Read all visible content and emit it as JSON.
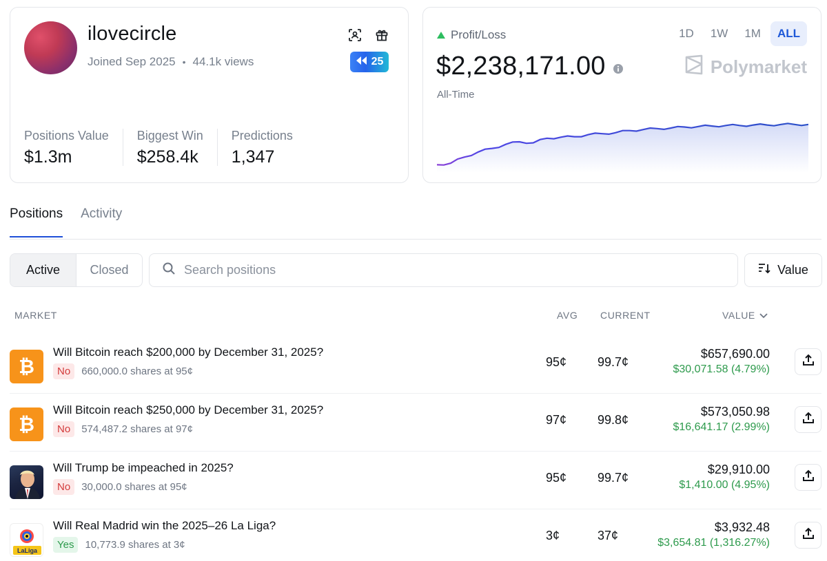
{
  "profile": {
    "username": "ilovecircle",
    "joined": "Joined Sep 2025",
    "views": "44.1k views",
    "badge_count": "25",
    "stats": [
      {
        "label": "Positions Value",
        "value": "$1.3m"
      },
      {
        "label": "Biggest Win",
        "value": "$258.4k"
      },
      {
        "label": "Predictions",
        "value": "1,347"
      }
    ]
  },
  "pnl": {
    "label": "Profit/Loss",
    "amount": "$2,238,171.00",
    "period": "All-Time",
    "ranges": [
      "1D",
      "1W",
      "1M",
      "ALL"
    ],
    "selected_range": "ALL",
    "brand": "Polymarket",
    "chart_data": {
      "type": "area",
      "series": [
        {
          "values": [
            0.05,
            0.08,
            0.2,
            0.3,
            0.37,
            0.45,
            0.5,
            0.48,
            0.57,
            0.59,
            0.6,
            0.64,
            0.66,
            0.68,
            0.72,
            0.74,
            0.76,
            0.77,
            0.79,
            0.8,
            0.81,
            0.82,
            0.82,
            0.83,
            0.83,
            0.84,
            0.84,
            0.84
          ]
        }
      ]
    }
  },
  "tabs": [
    "Positions",
    "Activity"
  ],
  "filters": {
    "active": "Active",
    "closed": "Closed"
  },
  "search": {
    "placeholder": "Search positions"
  },
  "sort": {
    "label": "Value"
  },
  "columns": {
    "market": "MARKET",
    "avg": "AVG",
    "current": "CURRENT",
    "value": "VALUE"
  },
  "positions": [
    {
      "title": "Will Bitcoin reach $200,000 by December 31, 2025?",
      "outcome": "No",
      "shares": "660,000.0 shares at 95¢",
      "avg": "95¢",
      "current": "99.7¢",
      "value": "$657,690.00",
      "pnl": "$30,071.58 (4.79%)",
      "icon": "bitcoin-icon"
    },
    {
      "title": "Will Bitcoin reach $250,000 by December 31, 2025?",
      "outcome": "No",
      "shares": "574,487.2 shares at 97¢",
      "avg": "97¢",
      "current": "99.8¢",
      "value": "$573,050.98",
      "pnl": "$16,641.17 (2.99%)",
      "icon": "bitcoin-icon"
    },
    {
      "title": "Will Trump be impeached in 2025?",
      "outcome": "No",
      "shares": "30,000.0 shares at 95¢",
      "avg": "95¢",
      "current": "99.7¢",
      "value": "$29,910.00",
      "pnl": "$1,410.00 (4.95%)",
      "icon": "portrait-icon"
    },
    {
      "title": "Will Real Madrid win the 2025–26 La Liga?",
      "outcome": "Yes",
      "shares": "10,773.9 shares at 3¢",
      "avg": "3¢",
      "current": "37¢",
      "value": "$3,932.48",
      "pnl": "$3,654.81 (1,316.27%)",
      "icon": "laliga-icon"
    }
  ],
  "colors": {
    "accent": "#1d58d8",
    "positive": "#2d9a4c",
    "negative": "#d33a3a",
    "bitcoin": "#f7931a"
  }
}
